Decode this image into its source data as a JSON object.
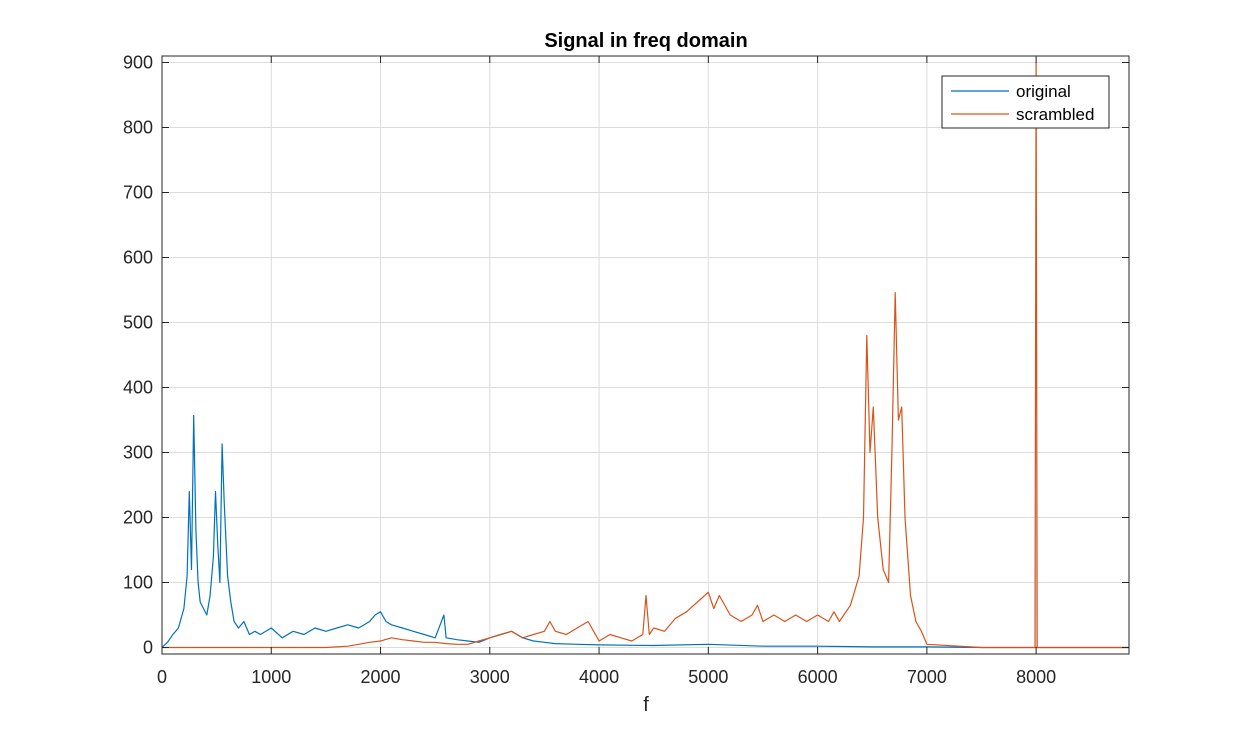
{
  "chart_data": {
    "type": "line",
    "title": "Signal in freq domain",
    "xlabel": "f",
    "ylabel": "",
    "xlim": [
      0,
      8850
    ],
    "ylim": [
      -10,
      910
    ],
    "xticks": [
      0,
      1000,
      2000,
      3000,
      4000,
      5000,
      6000,
      7000,
      8000
    ],
    "yticks": [
      0,
      100,
      200,
      300,
      400,
      500,
      600,
      700,
      800,
      900
    ],
    "xtick_labels": [
      "0",
      "1000",
      "2000",
      "3000",
      "4000",
      "5000",
      "6000",
      "7000",
      "8000"
    ],
    "ytick_labels": [
      "0",
      "100",
      "200",
      "300",
      "400",
      "500",
      "600",
      "700",
      "800",
      "900"
    ],
    "grid": true,
    "legend_position": "top-right",
    "series": [
      {
        "name": "original",
        "color": "#0072BD",
        "x": [
          0,
          50,
          100,
          150,
          200,
          230,
          250,
          270,
          290,
          310,
          330,
          350,
          380,
          410,
          440,
          470,
          490,
          510,
          530,
          550,
          570,
          600,
          630,
          660,
          700,
          750,
          800,
          850,
          900,
          1000,
          1100,
          1200,
          1300,
          1400,
          1500,
          1600,
          1700,
          1800,
          1900,
          1950,
          2000,
          2050,
          2100,
          2200,
          2300,
          2400,
          2500,
          2580,
          2600,
          2700,
          2800,
          2900,
          3000,
          3100,
          3200,
          3300,
          3400,
          3500,
          3600,
          3800,
          4000,
          4500,
          5000,
          5500,
          6000,
          6500,
          7000,
          7500,
          8000,
          8850
        ],
        "y": [
          0,
          8,
          20,
          30,
          60,
          110,
          240,
          120,
          357,
          180,
          100,
          70,
          60,
          50,
          80,
          140,
          240,
          160,
          100,
          313,
          220,
          110,
          70,
          40,
          30,
          40,
          20,
          25,
          20,
          30,
          15,
          25,
          20,
          30,
          25,
          30,
          35,
          30,
          40,
          50,
          55,
          40,
          35,
          30,
          25,
          20,
          15,
          50,
          15,
          12,
          10,
          8,
          15,
          20,
          25,
          15,
          10,
          8,
          6,
          5,
          4,
          3,
          5,
          2,
          2,
          1,
          1,
          0,
          0,
          0
        ]
      },
      {
        "name": "scrambled",
        "color": "#D95319",
        "x": [
          0,
          500,
          1000,
          1500,
          1700,
          1800,
          1900,
          2000,
          2100,
          2200,
          2300,
          2400,
          2500,
          2600,
          2700,
          2800,
          2900,
          3000,
          3100,
          3200,
          3300,
          3400,
          3500,
          3550,
          3600,
          3700,
          3800,
          3900,
          4000,
          4100,
          4200,
          4300,
          4400,
          4430,
          4460,
          4500,
          4600,
          4700,
          4800,
          4900,
          5000,
          5050,
          5100,
          5200,
          5300,
          5400,
          5450,
          5500,
          5600,
          5700,
          5800,
          5900,
          6000,
          6100,
          6150,
          6200,
          6300,
          6380,
          6420,
          6450,
          6480,
          6510,
          6550,
          6600,
          6650,
          6680,
          6710,
          6740,
          6770,
          6800,
          6850,
          6900,
          6950,
          7000,
          7500,
          7990,
          8000,
          8010,
          8500,
          8850
        ],
        "y": [
          0,
          0,
          0,
          0,
          2,
          5,
          8,
          10,
          15,
          12,
          10,
          8,
          8,
          6,
          5,
          5,
          10,
          15,
          20,
          25,
          15,
          20,
          25,
          40,
          25,
          20,
          30,
          40,
          10,
          20,
          15,
          10,
          20,
          80,
          20,
          30,
          25,
          45,
          55,
          70,
          85,
          60,
          80,
          50,
          40,
          50,
          65,
          40,
          50,
          40,
          50,
          40,
          50,
          40,
          55,
          40,
          65,
          110,
          200,
          480,
          300,
          370,
          200,
          120,
          100,
          300,
          546,
          350,
          370,
          200,
          80,
          40,
          25,
          5,
          0,
          0,
          900,
          0,
          0,
          0
        ]
      }
    ]
  }
}
